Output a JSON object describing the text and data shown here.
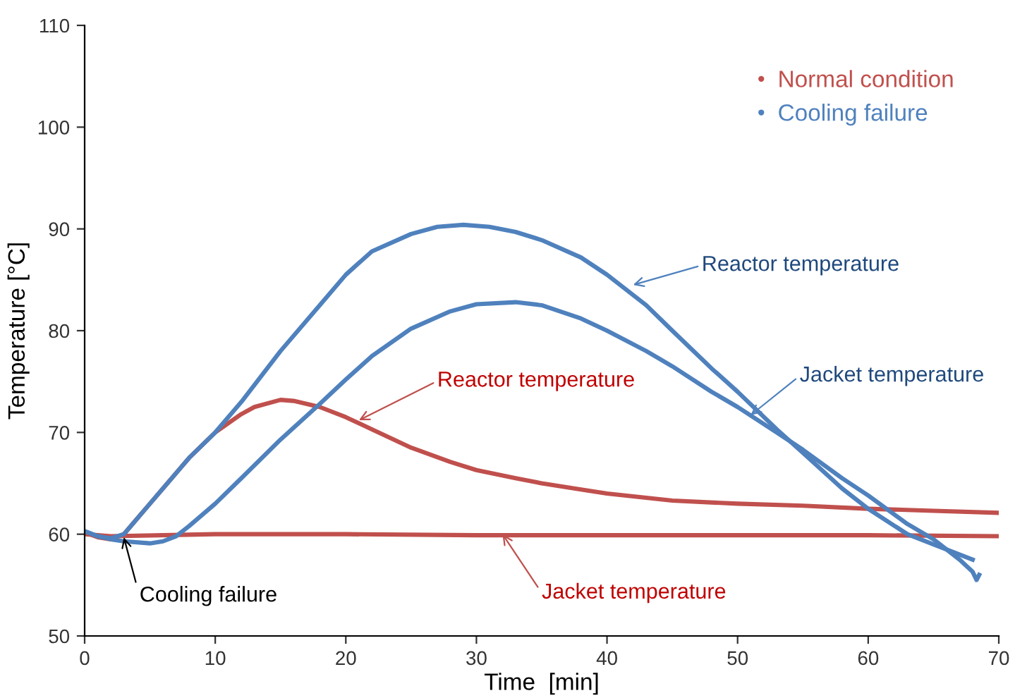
{
  "chart_data": {
    "type": "line",
    "xlabel": "Time  [min]",
    "ylabel": "Temperature [°C]",
    "xlim": [
      0,
      70
    ],
    "ylim": [
      50,
      110
    ],
    "xticks": [
      0,
      10,
      20,
      30,
      40,
      50,
      60,
      70
    ],
    "yticks": [
      50,
      60,
      70,
      80,
      90,
      100,
      110
    ],
    "grid": false,
    "legend": "top right",
    "marker": "none",
    "line_style": "solid",
    "series": [
      {
        "name": "Normal condition",
        "color": "#c0504d",
        "x": [
          0,
          1,
          2,
          3,
          4,
          5,
          6,
          8,
          10,
          12,
          13,
          15,
          16,
          18,
          20,
          22,
          25,
          28,
          30,
          33,
          35,
          38,
          40,
          45,
          50,
          55,
          60,
          65,
          70
        ],
        "values": [
          60.2,
          59.7,
          59.5,
          60,
          61.5,
          63,
          64.5,
          67.5,
          70,
          71.8,
          72.5,
          73.2,
          73.1,
          72.5,
          71.5,
          70.3,
          68.5,
          67.1,
          66.3,
          65.5,
          65,
          64.4,
          64,
          63.3,
          63,
          62.8,
          62.5,
          62.3,
          62.1
        ]
      },
      {
        "color": "#c0504d",
        "x": [
          0,
          2,
          10,
          20,
          30,
          40,
          50,
          60,
          70
        ],
        "values": [
          60,
          59.8,
          60,
          60,
          59.9,
          59.9,
          59.9,
          59.9,
          59.8
        ]
      },
      {
        "name": "Cooling failure",
        "color": "#4f81bd",
        "x": [
          0,
          1,
          2,
          3,
          5,
          8,
          10,
          12,
          15,
          18,
          20,
          22,
          25,
          27,
          29,
          31,
          33,
          35,
          38,
          40,
          43,
          45,
          48,
          50,
          53,
          55,
          58,
          60,
          63,
          65,
          68
        ],
        "values": [
          60.3,
          59.8,
          59.6,
          60,
          63,
          67.5,
          70,
          73,
          78,
          82.5,
          85.5,
          87.8,
          89.5,
          90.2,
          90.4,
          90.2,
          89.7,
          88.9,
          87.2,
          85.5,
          82.5,
          80,
          76.3,
          74,
          70.3,
          68,
          64.5,
          62.5,
          60,
          59,
          57.5
        ]
      },
      {
        "color": "#4f81bd",
        "x": [
          0,
          1,
          2,
          3,
          5,
          6,
          7,
          8,
          10,
          12,
          15,
          18,
          20,
          22,
          25,
          28,
          30,
          33,
          35,
          38,
          40,
          43,
          45,
          48,
          50,
          53,
          55,
          58,
          60,
          63,
          65,
          67,
          68,
          68.3,
          68.5
        ],
        "values": [
          60.3,
          59.8,
          59.5,
          59.3,
          59.1,
          59.3,
          59.8,
          60.8,
          63,
          65.5,
          69.3,
          72.8,
          75.2,
          77.5,
          80.2,
          81.9,
          82.6,
          82.8,
          82.5,
          81.2,
          80,
          78,
          76.5,
          74,
          72.5,
          70,
          68.3,
          65.5,
          63.8,
          61,
          59.5,
          57.5,
          56.3,
          55.5,
          56
        ]
      }
    ],
    "annotations": [
      {
        "text": "Reactor temperature",
        "x": 42,
        "y": 84.5
      },
      {
        "text": "Jacket temperature",
        "x": 51,
        "y": 71.7
      },
      {
        "text": "Reactor temperature",
        "x": 21,
        "y": 71.2
      },
      {
        "text": "Jacket temperature",
        "x": 32,
        "y": 60
      },
      {
        "text": "Cooling failure",
        "x": 3,
        "y": 59.7
      }
    ]
  }
}
